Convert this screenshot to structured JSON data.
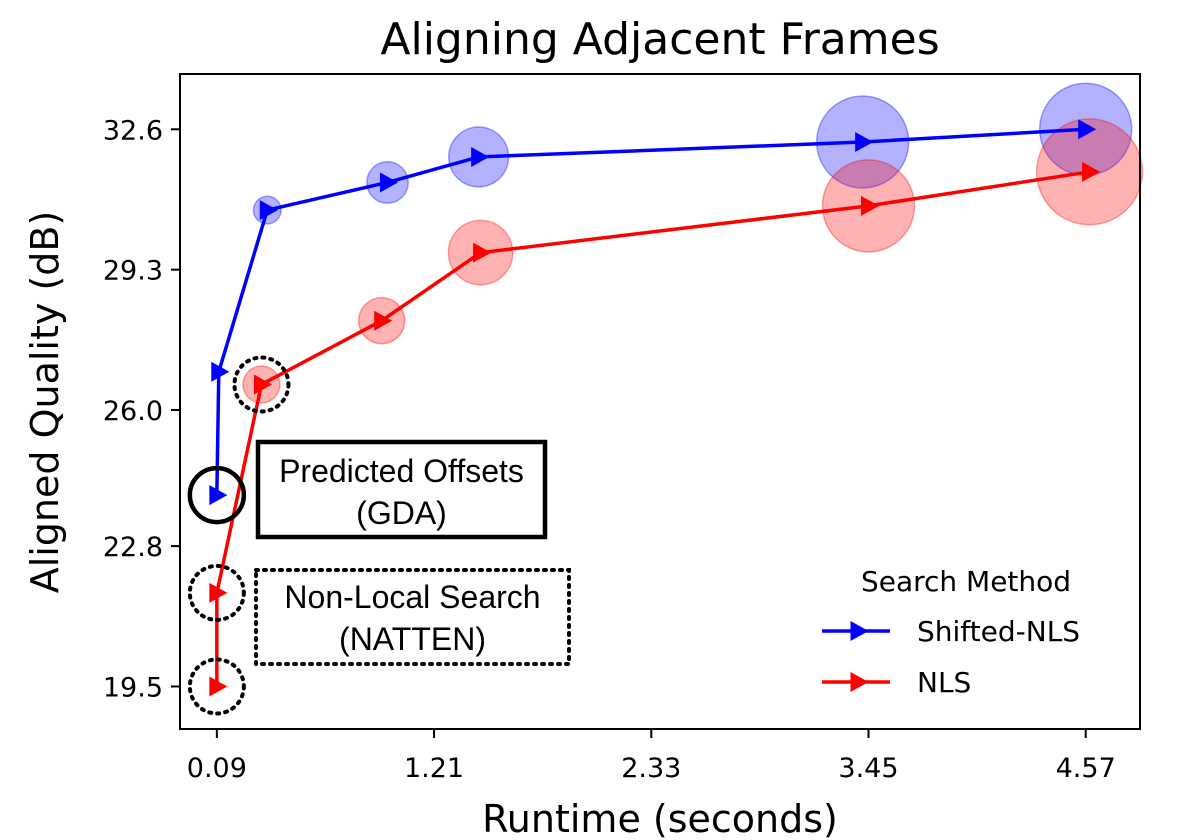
{
  "chart_data": {
    "type": "scatter",
    "title": "Aligning Adjacent Frames",
    "xlabel": "Runtime (seconds)",
    "ylabel": "Aligned Quality (dB)",
    "xlim": [
      -0.1,
      4.85
    ],
    "ylim": [
      18.5,
      33.9
    ],
    "xticks": [
      0.09,
      1.21,
      2.33,
      3.45,
      4.57
    ],
    "xtick_labels": [
      "0.09",
      "1.21",
      "2.33",
      "3.45",
      "4.57"
    ],
    "yticks": [
      19.5,
      22.8,
      26.0,
      29.3,
      32.6
    ],
    "ytick_labels": [
      "19.5",
      "22.8",
      "26.0",
      "29.3",
      "32.6"
    ],
    "grid": false,
    "legend": {
      "title": "Search Method",
      "placement": "lower-right"
    },
    "series": [
      {
        "name": "Shifted-NLS",
        "color": "#0000ff",
        "marker": "triangle-right",
        "x": [
          0.09,
          0.1,
          0.35,
          0.97,
          1.44,
          3.42,
          4.57
        ],
        "y": [
          24.0,
          26.9,
          30.7,
          31.35,
          31.95,
          32.3,
          32.6
        ],
        "bubble_size": [
          0.0,
          0.0,
          0.3,
          0.45,
          0.65,
          1.0,
          1.0
        ]
      },
      {
        "name": "NLS",
        "color": "#ff0000",
        "marker": "triangle-right",
        "x": [
          0.09,
          0.09,
          0.32,
          0.94,
          1.45,
          3.45,
          4.59
        ],
        "y": [
          19.5,
          21.7,
          26.6,
          28.1,
          29.7,
          30.8,
          31.6
        ],
        "bubble_size": [
          0.0,
          0.0,
          0.4,
          0.5,
          0.7,
          1.0,
          1.15
        ]
      }
    ],
    "annotations": [
      {
        "text_lines": [
          "Predicted Offsets",
          "(GDA)"
        ],
        "box": "solid",
        "highlight_series": 0,
        "highlight_points": [
          0
        ]
      },
      {
        "text_lines": [
          "Non-Local Search",
          "(NATTEN)"
        ],
        "box": "dotted",
        "highlight_series": 1,
        "highlight_points": [
          0,
          1,
          2
        ]
      }
    ]
  }
}
